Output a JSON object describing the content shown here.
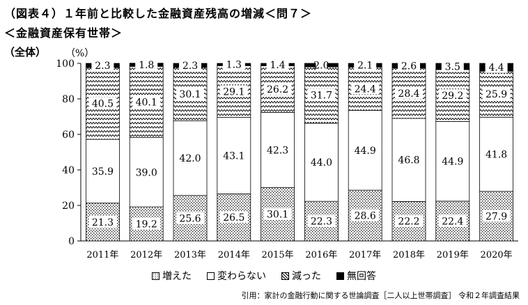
{
  "header": {
    "title": "（図表４）１年前と比較した金融資産残高の増減＜問７＞",
    "subtitle": "＜金融資産保有世帯＞",
    "scope_label": "（全体）",
    "unit_label": "（%）"
  },
  "chart_data": {
    "type": "bar",
    "stacked": true,
    "categories": [
      "2011年",
      "2012年",
      "2013年",
      "2014年",
      "2015年",
      "2016年",
      "2017年",
      "2018年",
      "2019年",
      "2020年"
    ],
    "series": [
      {
        "name": "増えた",
        "pattern": "dots",
        "values": [
          21.3,
          19.2,
          25.6,
          26.5,
          30.1,
          22.3,
          28.6,
          22.2,
          22.4,
          27.9
        ]
      },
      {
        "name": "変わらない",
        "pattern": "white",
        "values": [
          35.9,
          39.0,
          42.0,
          43.1,
          42.3,
          44.0,
          44.9,
          46.8,
          44.9,
          41.8
        ]
      },
      {
        "name": "減った",
        "pattern": "zigzag",
        "values": [
          40.5,
          40.1,
          30.1,
          29.1,
          26.2,
          31.7,
          24.4,
          28.4,
          29.2,
          25.9
        ]
      },
      {
        "name": "無回答",
        "pattern": "black",
        "values": [
          2.3,
          1.8,
          2.3,
          1.3,
          1.4,
          2.0,
          2.1,
          2.6,
          3.5,
          4.4
        ]
      }
    ],
    "ylim": [
      0,
      100
    ],
    "yticks": [
      0,
      20,
      40,
      60,
      80,
      100
    ],
    "legend_position": "bottom",
    "grid": false
  },
  "legend": {
    "items": [
      "増えた",
      "変わらない",
      "減った",
      "無回答"
    ]
  },
  "source": "引用：家計の金融行動に関する世論調査［二人以上世帯調査］ 令和２年調査結果"
}
